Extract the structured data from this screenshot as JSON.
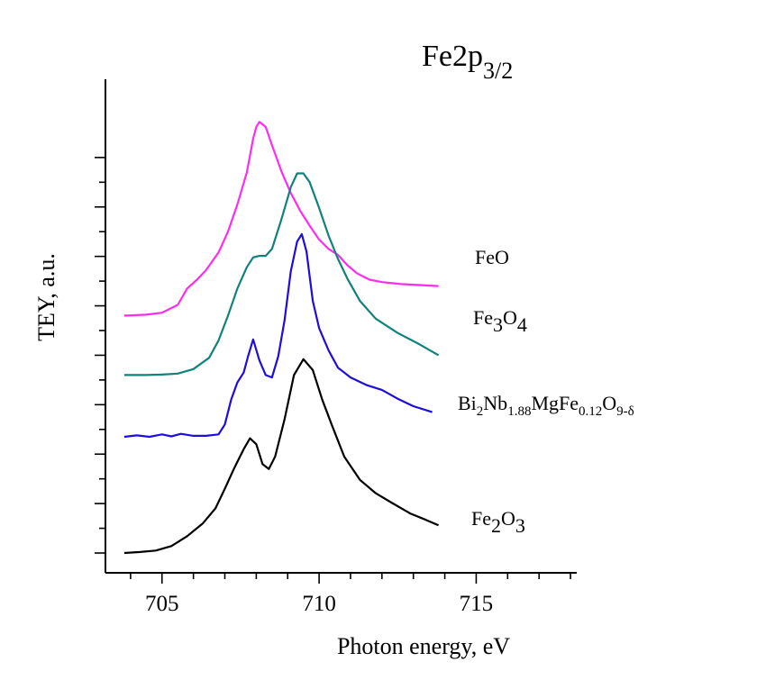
{
  "chart_data": {
    "type": "line",
    "title_main": "Fe2p",
    "title_sub": "3/2",
    "xlabel": "Photon energy, eV",
    "ylabel": "TEY, a.u.",
    "xlim": [
      703.2,
      718.2
    ],
    "ylim": [
      0,
      9
    ],
    "x_ticks": [
      705,
      710,
      715
    ],
    "y_ticks_numbered": false,
    "grid": false,
    "series": [
      {
        "id": "feo",
        "color": "#ff2bf0",
        "label_parts": [
          {
            "t": "FeO",
            "k": "n"
          }
        ],
        "points": [
          [
            703.8,
            4.8
          ],
          [
            704.5,
            4.82
          ],
          [
            705.0,
            4.86
          ],
          [
            705.5,
            5.02
          ],
          [
            705.8,
            5.35
          ],
          [
            706.1,
            5.52
          ],
          [
            706.4,
            5.72
          ],
          [
            706.8,
            6.08
          ],
          [
            707.1,
            6.5
          ],
          [
            707.4,
            7.05
          ],
          [
            707.7,
            7.7
          ],
          [
            707.9,
            8.38
          ],
          [
            708.0,
            8.62
          ],
          [
            708.1,
            8.72
          ],
          [
            708.3,
            8.62
          ],
          [
            708.5,
            8.25
          ],
          [
            708.8,
            7.72
          ],
          [
            709.1,
            7.28
          ],
          [
            709.4,
            6.92
          ],
          [
            709.7,
            6.62
          ],
          [
            710.0,
            6.34
          ],
          [
            710.3,
            6.15
          ],
          [
            710.6,
            6.03
          ],
          [
            710.9,
            5.82
          ],
          [
            711.2,
            5.66
          ],
          [
            711.6,
            5.53
          ],
          [
            712.0,
            5.48
          ],
          [
            712.6,
            5.44
          ],
          [
            713.2,
            5.42
          ],
          [
            713.8,
            5.4
          ]
        ]
      },
      {
        "id": "fe3o4",
        "color": "#11827a",
        "label_parts": [
          {
            "t": "Fe",
            "k": "n"
          },
          {
            "t": "3",
            "k": "sub"
          },
          {
            "t": "O",
            "k": "n"
          },
          {
            "t": "4",
            "k": "sub"
          }
        ],
        "points": [
          [
            703.8,
            3.6
          ],
          [
            704.5,
            3.6
          ],
          [
            705.0,
            3.61
          ],
          [
            705.5,
            3.63
          ],
          [
            706.0,
            3.72
          ],
          [
            706.5,
            3.95
          ],
          [
            706.8,
            4.3
          ],
          [
            707.1,
            4.8
          ],
          [
            707.4,
            5.35
          ],
          [
            707.7,
            5.78
          ],
          [
            707.9,
            5.98
          ],
          [
            708.1,
            6.01
          ],
          [
            708.3,
            6.01
          ],
          [
            708.5,
            6.15
          ],
          [
            708.8,
            6.75
          ],
          [
            709.1,
            7.4
          ],
          [
            709.3,
            7.68
          ],
          [
            709.5,
            7.68
          ],
          [
            709.7,
            7.5
          ],
          [
            710.0,
            6.98
          ],
          [
            710.3,
            6.42
          ],
          [
            710.6,
            5.95
          ],
          [
            710.9,
            5.55
          ],
          [
            711.3,
            5.1
          ],
          [
            711.8,
            4.74
          ],
          [
            712.5,
            4.45
          ],
          [
            713.2,
            4.22
          ],
          [
            713.8,
            4.0
          ]
        ]
      },
      {
        "id": "bnmfo",
        "color": "#1e0ddd",
        "label_parts": [
          {
            "t": "Bi",
            "k": "n"
          },
          {
            "t": "2",
            "k": "sub2"
          },
          {
            "t": "Nb",
            "k": "n"
          },
          {
            "t": "1.88",
            "k": "sub2"
          },
          {
            "t": "MgFe",
            "k": "n"
          },
          {
            "t": "0.12",
            "k": "sub2"
          },
          {
            "t": "O",
            "k": "n"
          },
          {
            "t": "9-δ",
            "k": "sub2"
          }
        ],
        "points": [
          [
            703.8,
            2.35
          ],
          [
            704.2,
            2.38
          ],
          [
            704.6,
            2.35
          ],
          [
            705.0,
            2.4
          ],
          [
            705.3,
            2.36
          ],
          [
            705.6,
            2.41
          ],
          [
            706.0,
            2.37
          ],
          [
            706.4,
            2.37
          ],
          [
            706.8,
            2.4
          ],
          [
            707.0,
            2.6
          ],
          [
            707.2,
            3.1
          ],
          [
            707.4,
            3.45
          ],
          [
            707.6,
            3.65
          ],
          [
            707.75,
            4.0
          ],
          [
            707.9,
            4.32
          ],
          [
            708.1,
            3.9
          ],
          [
            708.3,
            3.6
          ],
          [
            708.5,
            3.55
          ],
          [
            708.7,
            3.98
          ],
          [
            708.9,
            4.7
          ],
          [
            709.1,
            5.7
          ],
          [
            709.3,
            6.3
          ],
          [
            709.45,
            6.45
          ],
          [
            709.6,
            6.1
          ],
          [
            709.8,
            5.1
          ],
          [
            710.0,
            4.55
          ],
          [
            710.3,
            4.1
          ],
          [
            710.6,
            3.75
          ],
          [
            711.0,
            3.55
          ],
          [
            711.5,
            3.4
          ],
          [
            712.0,
            3.3
          ],
          [
            712.5,
            3.12
          ],
          [
            713.0,
            2.97
          ],
          [
            713.6,
            2.85
          ]
        ]
      },
      {
        "id": "fe2o3",
        "color": "#000000",
        "label_parts": [
          {
            "t": "Fe",
            "k": "n"
          },
          {
            "t": "2",
            "k": "sub"
          },
          {
            "t": "O",
            "k": "n"
          },
          {
            "t": "3",
            "k": "sub"
          }
        ],
        "points": [
          [
            703.8,
            0.0
          ],
          [
            704.3,
            0.02
          ],
          [
            704.8,
            0.05
          ],
          [
            705.3,
            0.14
          ],
          [
            705.8,
            0.34
          ],
          [
            706.3,
            0.6
          ],
          [
            706.7,
            0.9
          ],
          [
            707.0,
            1.3
          ],
          [
            707.3,
            1.72
          ],
          [
            707.6,
            2.1
          ],
          [
            707.8,
            2.32
          ],
          [
            708.0,
            2.2
          ],
          [
            708.2,
            1.8
          ],
          [
            708.4,
            1.7
          ],
          [
            708.6,
            1.95
          ],
          [
            708.9,
            2.7
          ],
          [
            709.2,
            3.6
          ],
          [
            709.5,
            3.92
          ],
          [
            709.8,
            3.7
          ],
          [
            710.1,
            3.1
          ],
          [
            710.4,
            2.6
          ],
          [
            710.8,
            1.95
          ],
          [
            711.3,
            1.48
          ],
          [
            711.8,
            1.21
          ],
          [
            712.3,
            1.02
          ],
          [
            712.9,
            0.8
          ],
          [
            713.4,
            0.67
          ],
          [
            713.8,
            0.56
          ]
        ]
      }
    ]
  }
}
